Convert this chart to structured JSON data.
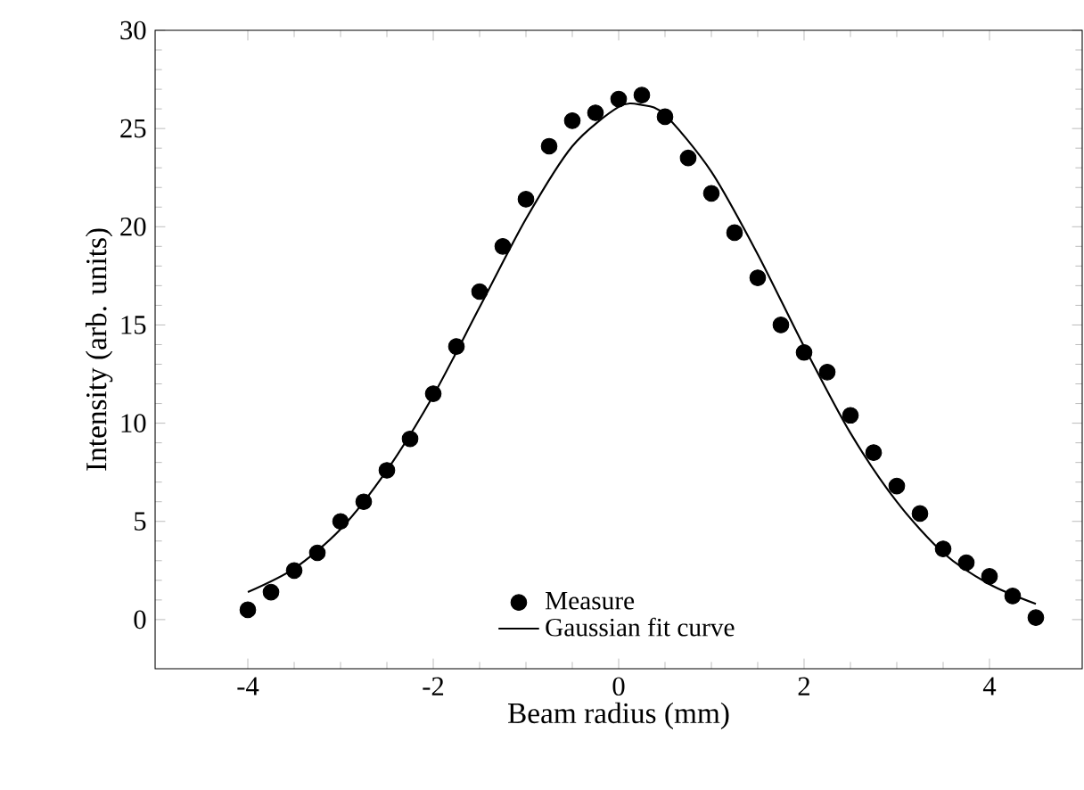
{
  "chart_data": {
    "type": "scatter",
    "xlabel": "Beam radius (mm)",
    "ylabel": "Intensity (arb. units)",
    "xlim": [
      -5,
      5
    ],
    "ylim": [
      -2.5,
      30
    ],
    "xticks": [
      -4,
      -2,
      0,
      2,
      4
    ],
    "yticks": [
      0,
      5,
      10,
      15,
      20,
      25,
      30
    ],
    "legend": "bottom",
    "series": [
      {
        "name": "Measure",
        "marker": "circle",
        "color": "#000000",
        "x": [
          -4,
          -3.75,
          -3.5,
          -3.25,
          -3,
          -2.75,
          -2.5,
          -2.25,
          -2,
          -1.75,
          -1.5,
          -1.25,
          -1,
          -0.75,
          -0.5,
          -0.25,
          0,
          0.25,
          0.5,
          0.75,
          1,
          1.25,
          1.5,
          1.75,
          2,
          2.25,
          2.5,
          2.75,
          3,
          3.25,
          3.5,
          3.75,
          4,
          4.25,
          4.5
        ],
        "values": [
          0.5,
          1.4,
          2.5,
          3.4,
          5.0,
          6.0,
          7.6,
          9.2,
          11.5,
          13.9,
          16.7,
          19.0,
          21.4,
          24.1,
          25.4,
          25.8,
          26.5,
          26.7,
          25.6,
          23.5,
          21.7,
          19.7,
          17.4,
          15.0,
          13.6,
          12.6,
          10.4,
          8.5,
          6.8,
          5.4,
          3.6,
          2.9,
          2.2,
          1.2,
          0.1
        ]
      },
      {
        "name": "Gaussian fit curve",
        "type": "line",
        "color": "#000000",
        "marker": "none",
        "line_style": "solid",
        "x": [
          -4,
          -3.5,
          -3,
          -2.5,
          -2,
          -1.5,
          -1,
          -0.5,
          0,
          0.25,
          0.5,
          1,
          1.5,
          2,
          2.5,
          3,
          3.5,
          4,
          4.5
        ],
        "values": [
          1.4,
          2.6,
          4.6,
          7.6,
          11.4,
          15.9,
          20.4,
          24.1,
          26.1,
          26.2,
          25.7,
          22.8,
          18.6,
          13.9,
          9.5,
          6.0,
          3.4,
          1.8,
          0.8
        ]
      }
    ]
  }
}
